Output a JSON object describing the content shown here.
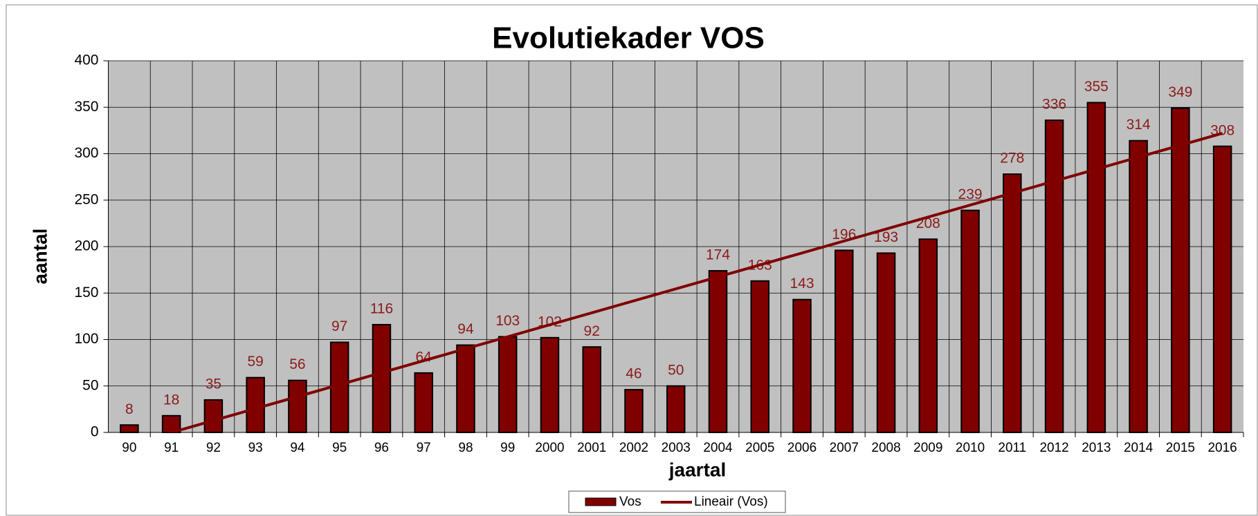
{
  "chart_data": {
    "type": "bar",
    "title": "Evolutiekader VOS",
    "x_label": "jaartal",
    "y_label": "aantal",
    "categories": [
      "90",
      "91",
      "92",
      "93",
      "94",
      "95",
      "96",
      "97",
      "98",
      "99",
      "2000",
      "2001",
      "2002",
      "2003",
      "2004",
      "2005",
      "2006",
      "2007",
      "2008",
      "2009",
      "2010",
      "2011",
      "2012",
      "2013",
      "2014",
      "2015",
      "2016"
    ],
    "series": [
      {
        "name": "Vos",
        "color": "#800000",
        "values": [
          8,
          18,
          35,
          59,
          56,
          97,
          116,
          64,
          94,
          103,
          102,
          92,
          46,
          50,
          174,
          163,
          143,
          196,
          193,
          208,
          239,
          278,
          336,
          355,
          314,
          349,
          308
        ]
      }
    ],
    "trendline": {
      "name": "Lineair (Vos)",
      "color": "#800000",
      "start": -13,
      "end": 322
    },
    "ylim": [
      0,
      400
    ],
    "yticks": [
      0,
      50,
      100,
      150,
      200,
      250,
      300,
      350,
      400
    ],
    "grid": true,
    "legend": "bottom"
  }
}
